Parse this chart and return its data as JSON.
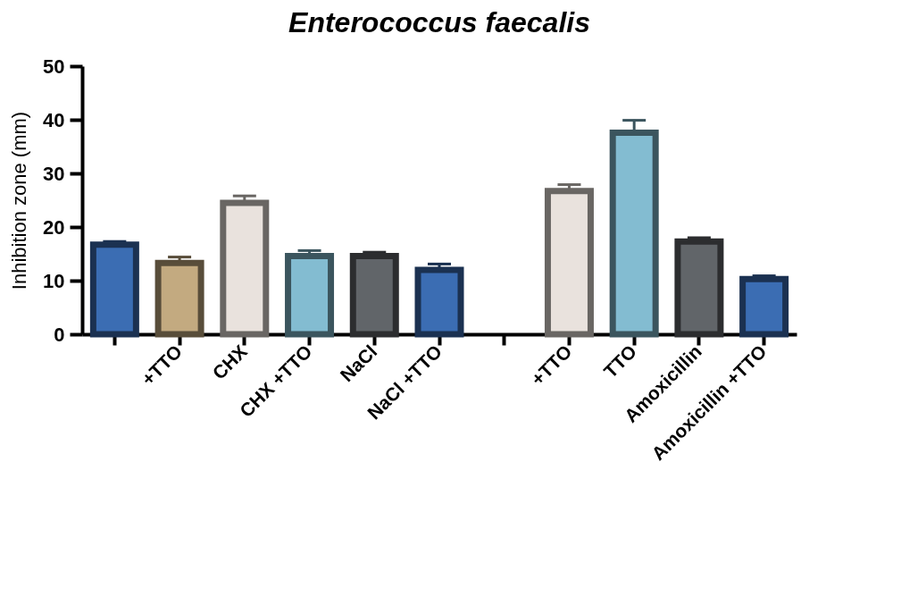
{
  "chart_data": {
    "type": "bar",
    "title": "Enterococcus faecalis",
    "ylabel": "Inhibition zone (mm)",
    "categories": [
      null,
      "+TTO",
      "CHX",
      "CHX +TTO",
      "NaCl",
      "NaCl +TTO",
      null,
      "+TTO",
      "TTO",
      "Amoxicillin",
      "Amoxicillin +TTO"
    ],
    "values": [
      16.7,
      13.3,
      24.5,
      14.6,
      14.6,
      12.0,
      0,
      26.7,
      37.6,
      17.3,
      10.3
    ],
    "errors": [
      0.6,
      1.1,
      1.3,
      1.0,
      0.7,
      1.1,
      null,
      1.2,
      2.3,
      0.7,
      0.6
    ],
    "colors": [
      "#3b6db3",
      "#c3aa80",
      "#e9e2dd",
      "#83bcd1",
      "#616569",
      "#3b6db3",
      "#3b6db3",
      "#e9e2dd",
      "#83bcd1",
      "#616569",
      "#3b6db3"
    ],
    "ylim": [
      0,
      50
    ],
    "yticks": [
      0,
      10,
      20,
      30,
      40,
      50
    ],
    "grid": false
  }
}
